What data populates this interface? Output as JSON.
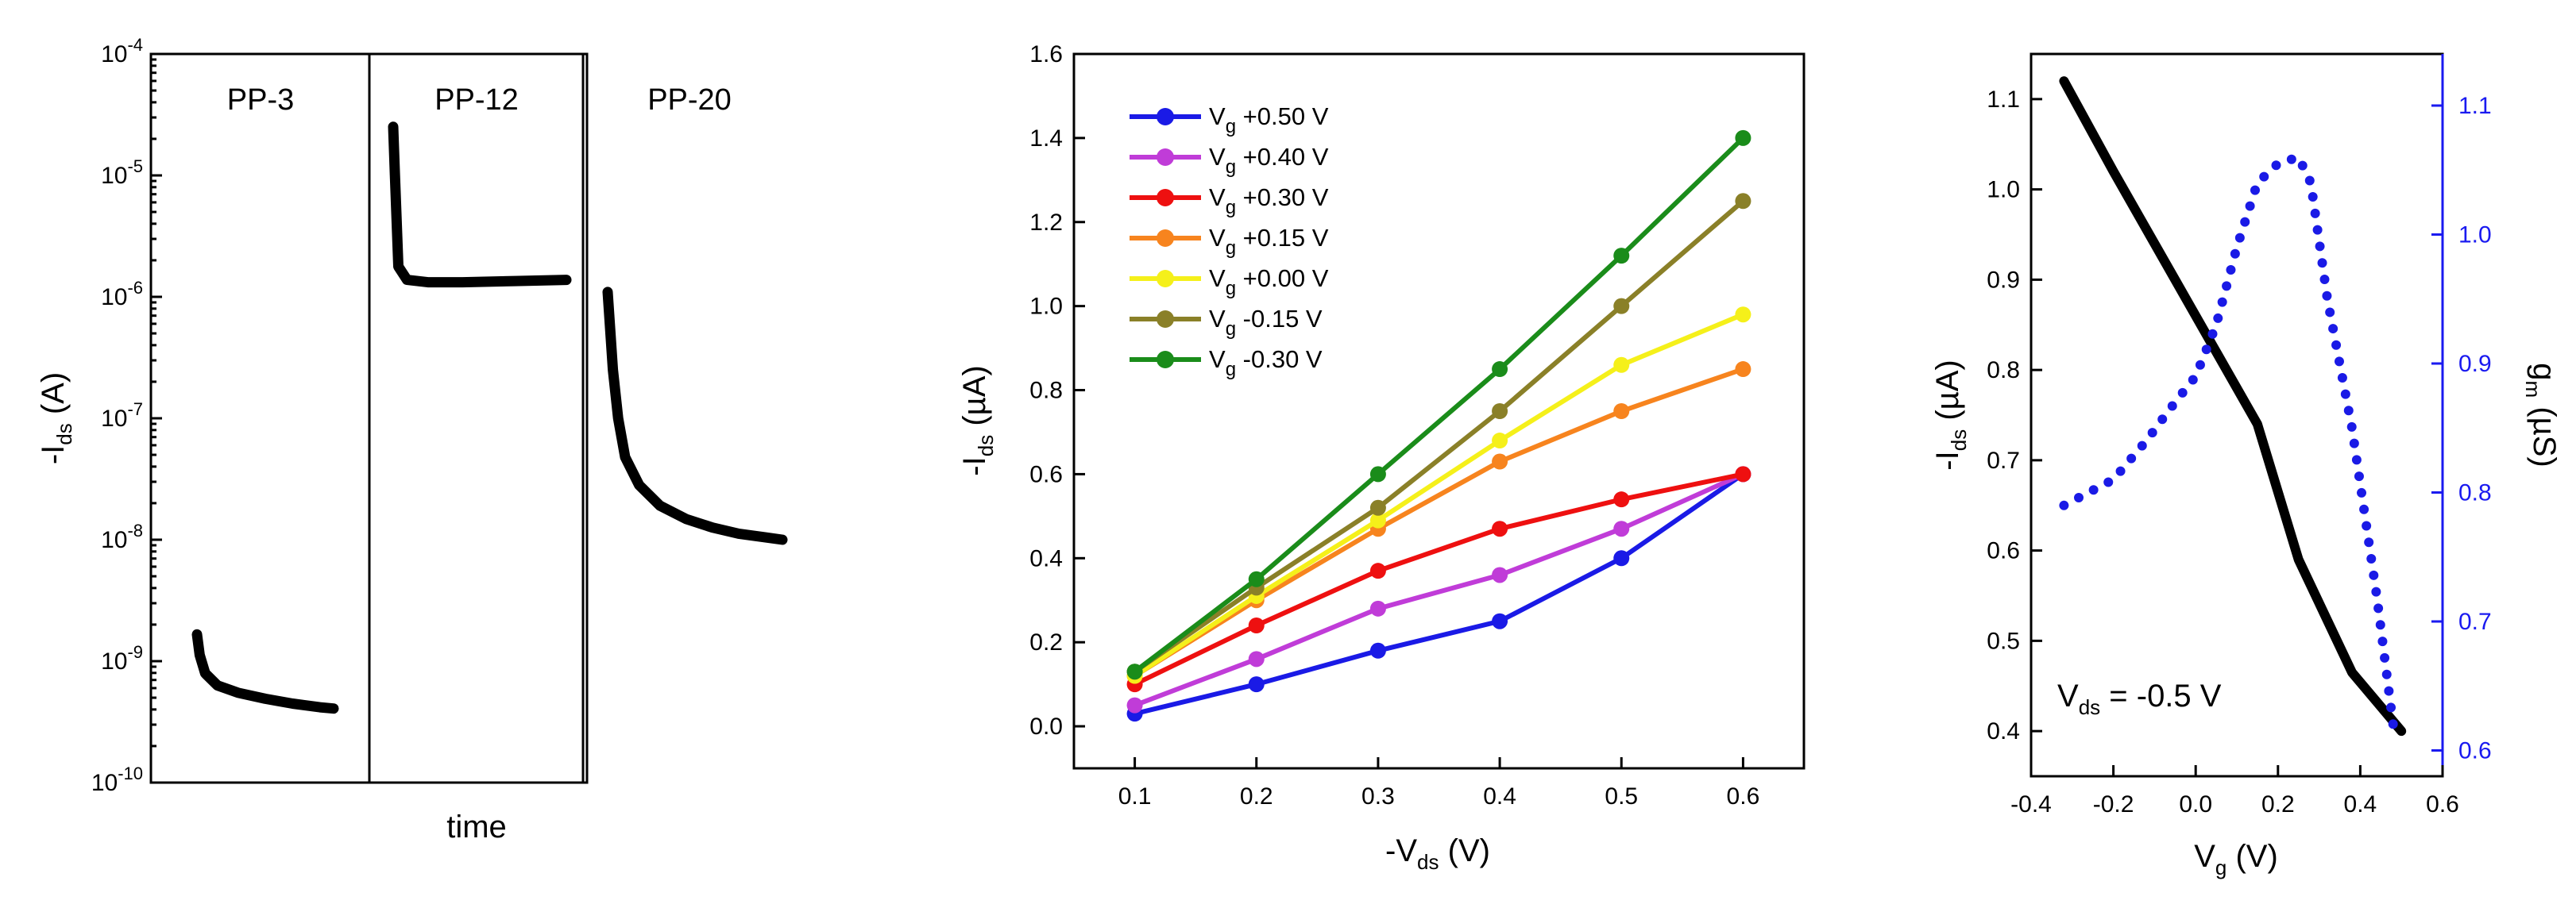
{
  "chart_data": [
    {
      "type": "line",
      "scale": "log",
      "panels": [
        "PP-3",
        "PP-12",
        "PP-20"
      ],
      "xlabel": "time",
      "ylabel_main": "-I",
      "ylabel_sub": "ds",
      "ylabel_unit": " (A)",
      "y_ticks": [
        {
          "base": "10",
          "exp": "-4"
        },
        {
          "base": "10",
          "exp": "-5"
        },
        {
          "base": "10",
          "exp": "-6"
        },
        {
          "base": "10",
          "exp": "-7"
        },
        {
          "base": "10",
          "exp": "-8"
        },
        {
          "base": "10",
          "exp": "-9"
        },
        {
          "base": "10",
          "exp": "-10"
        }
      ],
      "ylim_log10": [
        -10,
        -4
      ],
      "series": [
        {
          "name": "PP-3",
          "t": [
            0,
            0.02,
            0.06,
            0.15,
            0.3,
            0.5,
            0.7,
            0.9,
            1.0
          ],
          "log10_I": [
            -8.78,
            -8.95,
            -9.1,
            -9.2,
            -9.26,
            -9.31,
            -9.35,
            -9.38,
            -9.39
          ]
        },
        {
          "name": "PP-12",
          "t": [
            0,
            0.01,
            0.03,
            0.08,
            0.2,
            0.4,
            0.7,
            1.0
          ],
          "log10_I": [
            -4.6,
            -5.0,
            -5.75,
            -5.86,
            -5.88,
            -5.88,
            -5.87,
            -5.86
          ]
        },
        {
          "name": "PP-20",
          "t": [
            0,
            0.03,
            0.06,
            0.1,
            0.18,
            0.3,
            0.45,
            0.6,
            0.75,
            0.9,
            1.0
          ],
          "log10_I": [
            -5.96,
            -6.6,
            -7.0,
            -7.32,
            -7.55,
            -7.72,
            -7.83,
            -7.9,
            -7.95,
            -7.98,
            -8.0
          ]
        }
      ]
    },
    {
      "type": "line",
      "xlabel_main": "-V",
      "xlabel_sub": "ds",
      "xlabel_unit": " (V)",
      "ylabel_main": "-I",
      "ylabel_sub": "ds",
      "ylabel_unit": " (µA)",
      "xlim": [
        0.05,
        0.65
      ],
      "ylim": [
        -0.1,
        1.6
      ],
      "x_ticks": [
        "0.1",
        "0.2",
        "0.3",
        "0.4",
        "0.5",
        "0.6"
      ],
      "y_ticks": [
        "0.0",
        "0.2",
        "0.4",
        "0.6",
        "0.8",
        "1.0",
        "1.2",
        "1.4",
        "1.6"
      ],
      "x": [
        0.1,
        0.2,
        0.3,
        0.4,
        0.5,
        0.6
      ],
      "series": [
        {
          "name": "V",
          "sub": "g",
          "value": " +0.50 V",
          "color": "#1a1ae6",
          "values": [
            0.03,
            0.1,
            0.18,
            0.25,
            0.4,
            0.6
          ]
        },
        {
          "name": "V",
          "sub": "g",
          "value": " +0.40 V",
          "color": "#c03cd8",
          "values": [
            0.05,
            0.16,
            0.28,
            0.36,
            0.47,
            0.6
          ]
        },
        {
          "name": "V",
          "sub": "g",
          "value": " +0.30 V",
          "color": "#ee1010",
          "values": [
            0.1,
            0.24,
            0.37,
            0.47,
            0.54,
            0.6
          ]
        },
        {
          "name": "V",
          "sub": "g",
          "value": " +0.15 V",
          "color": "#f7841e",
          "values": [
            0.12,
            0.3,
            0.47,
            0.63,
            0.75,
            0.85
          ]
        },
        {
          "name": "V",
          "sub": "g",
          "value": " +0.00 V",
          "color": "#f5f01a",
          "values": [
            0.12,
            0.31,
            0.49,
            0.68,
            0.86,
            0.98
          ]
        },
        {
          "name": "V",
          "sub": "g",
          "value": " -0.15 V",
          "color": "#8a8028",
          "values": [
            0.13,
            0.33,
            0.52,
            0.75,
            1.0,
            1.25
          ]
        },
        {
          "name": "V",
          "sub": "g",
          "value": " -0.30 V",
          "color": "#1a8c1a",
          "values": [
            0.13,
            0.35,
            0.6,
            0.85,
            1.12,
            1.4
          ]
        }
      ]
    },
    {
      "type": "line",
      "xlabel_main": "V",
      "xlabel_sub": "g",
      "xlabel_unit": " (V)",
      "ylabel_main": "-I",
      "ylabel_sub": "ds",
      "ylabel_unit": " (µA)",
      "y2label_main": "g",
      "y2label_sub": "m",
      "y2label_unit": " (µS)",
      "annotation_main": "V",
      "annotation_sub": "ds",
      "annotation_value": " = -0.5 V",
      "xlim": [
        -0.4,
        0.6
      ],
      "ylim": [
        0.35,
        1.15
      ],
      "y2lim": [
        0.58,
        1.14
      ],
      "x_ticks": [
        "-0.4",
        "-0.2",
        "0.0",
        "0.2",
        "0.4",
        "0.6"
      ],
      "y_ticks": [
        "0.4",
        "0.5",
        "0.6",
        "0.7",
        "0.8",
        "0.9",
        "1.0",
        "1.1"
      ],
      "y2_ticks": [
        "0.6",
        "0.7",
        "0.8",
        "0.9",
        "1.0",
        "1.1"
      ],
      "ids": {
        "x": [
          -0.32,
          -0.2,
          -0.05,
          0.05,
          0.15,
          0.25,
          0.38,
          0.5
        ],
        "values": [
          1.12,
          1.02,
          0.9,
          0.82,
          0.74,
          0.59,
          0.465,
          0.4
        ]
      },
      "gm": {
        "x": [
          -0.32,
          -0.2,
          -0.12,
          -0.05,
          0.0,
          0.05,
          0.1,
          0.15,
          0.2,
          0.25,
          0.28,
          0.32,
          0.38,
          0.44,
          0.48
        ],
        "values": [
          0.79,
          0.81,
          0.84,
          0.87,
          0.89,
          0.93,
          0.99,
          1.04,
          1.055,
          1.06,
          1.04,
          0.95,
          0.85,
          0.72,
          0.62
        ]
      }
    }
  ]
}
